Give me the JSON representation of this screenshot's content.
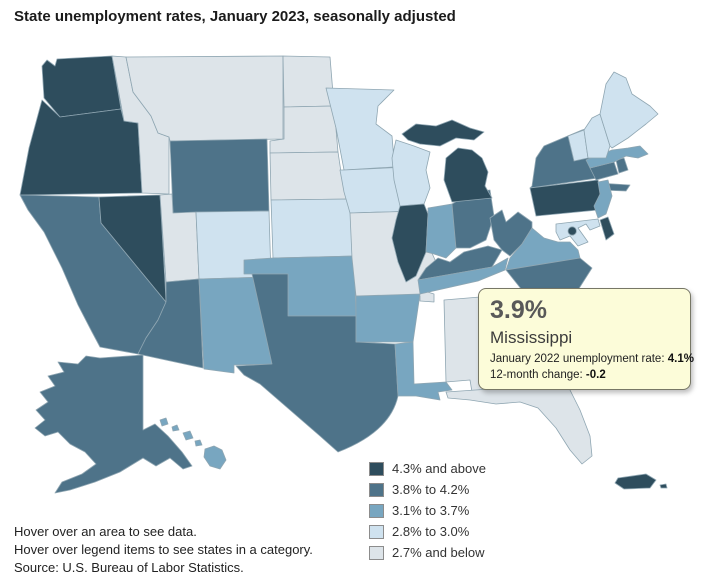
{
  "title": "State unemployment rates, January 2023, seasonally adjusted",
  "tooltip": {
    "rate": "3.9%",
    "state": "Mississippi",
    "row1_label": "January 2022 unemployment rate:",
    "row1_value": "4.1%",
    "row2_label": "12-month change:",
    "row2_value": "-0.2"
  },
  "footer": {
    "lines": [
      "Hover over an area to see data.",
      "Hover over legend items to see states in a category.",
      "Source: U.S. Bureau of Labor Statistics."
    ]
  },
  "chart_data": {
    "type": "heatmap",
    "subtype": "us-choropleth-map",
    "title": "State unemployment rates, January 2023, seasonally adjusted",
    "legend_position": "bottom-center",
    "categories": [
      "4.3% and above",
      "3.8% to 4.2%",
      "3.1% to 3.7%",
      "2.8% to 3.0%",
      "2.7% and below"
    ],
    "category_colors": [
      "#2e4d5d",
      "#4e7389",
      "#78a6c0",
      "#cfe2ef",
      "#dde4e9"
    ],
    "highlight_color": "#f5f22b",
    "border_color": "#8fa6b2",
    "highlighted_region": {
      "name": "Mississippi",
      "rate_jan_2023": "3.9%",
      "rate_jan_2022": "4.1%",
      "twelve_month_change": "-0.2"
    },
    "source": "U.S. Bureau of Labor Statistics",
    "regions": [
      {
        "id": "WA",
        "name": "Washington",
        "category": 0
      },
      {
        "id": "OR",
        "name": "Oregon",
        "category": 0
      },
      {
        "id": "CA",
        "name": "California",
        "category": 1
      },
      {
        "id": "NV",
        "name": "Nevada",
        "category": 0
      },
      {
        "id": "ID",
        "name": "Idaho",
        "category": 4
      },
      {
        "id": "MT",
        "name": "Montana",
        "category": 4
      },
      {
        "id": "WY",
        "name": "Wyoming",
        "category": 1
      },
      {
        "id": "UT",
        "name": "Utah",
        "category": 4
      },
      {
        "id": "CO",
        "name": "Colorado",
        "category": 3
      },
      {
        "id": "AZ",
        "name": "Arizona",
        "category": 1
      },
      {
        "id": "NM",
        "name": "New Mexico",
        "category": 2
      },
      {
        "id": "ND",
        "name": "North Dakota",
        "category": 4
      },
      {
        "id": "SD",
        "name": "South Dakota",
        "category": 4
      },
      {
        "id": "NE",
        "name": "Nebraska",
        "category": 4
      },
      {
        "id": "KS",
        "name": "Kansas",
        "category": 3
      },
      {
        "id": "OK",
        "name": "Oklahoma",
        "category": 2
      },
      {
        "id": "TX",
        "name": "Texas",
        "category": 1
      },
      {
        "id": "MN",
        "name": "Minnesota",
        "category": 3
      },
      {
        "id": "IA",
        "name": "Iowa",
        "category": 3
      },
      {
        "id": "MO",
        "name": "Missouri",
        "category": 4
      },
      {
        "id": "AR",
        "name": "Arkansas",
        "category": 2
      },
      {
        "id": "LA",
        "name": "Louisiana",
        "category": 2
      },
      {
        "id": "WI",
        "name": "Wisconsin",
        "category": 3
      },
      {
        "id": "IL",
        "name": "Illinois",
        "category": 0
      },
      {
        "id": "IN",
        "name": "Indiana",
        "category": 2
      },
      {
        "id": "OH",
        "name": "Ohio",
        "category": 1
      },
      {
        "id": "MI",
        "name": "Michigan",
        "category": 0
      },
      {
        "id": "KY",
        "name": "Kentucky",
        "category": 1
      },
      {
        "id": "TN",
        "name": "Tennessee",
        "category": 2
      },
      {
        "id": "WV",
        "name": "West Virginia",
        "category": 1
      },
      {
        "id": "VA",
        "name": "Virginia",
        "category": 2
      },
      {
        "id": "NC",
        "name": "North Carolina",
        "category": 1
      },
      {
        "id": "SC",
        "name": "South Carolina",
        "category": 2
      },
      {
        "id": "GA",
        "name": "Georgia",
        "category": 2
      },
      {
        "id": "AL",
        "name": "Alabama",
        "category": 4
      },
      {
        "id": "FL",
        "name": "Florida",
        "category": 4
      },
      {
        "id": "NY",
        "name": "New York",
        "category": 1
      },
      {
        "id": "PA",
        "name": "Pennsylvania",
        "category": 0
      },
      {
        "id": "NJ",
        "name": "New Jersey",
        "category": 2
      },
      {
        "id": "CT",
        "name": "Connecticut",
        "category": 1
      },
      {
        "id": "RI",
        "name": "Rhode Island",
        "category": 1
      },
      {
        "id": "MA",
        "name": "Massachusetts",
        "category": 2
      },
      {
        "id": "VT",
        "name": "Vermont",
        "category": 3
      },
      {
        "id": "NH",
        "name": "New Hampshire",
        "category": 3
      },
      {
        "id": "ME",
        "name": "Maine",
        "category": 3
      },
      {
        "id": "DE",
        "name": "Delaware",
        "category": 0
      },
      {
        "id": "MD",
        "name": "Maryland",
        "category": 3
      },
      {
        "id": "DC",
        "name": "District of Columbia",
        "category": 0
      },
      {
        "id": "AK",
        "name": "Alaska",
        "category": 1
      },
      {
        "id": "HI",
        "name": "Hawaii",
        "category": 2
      },
      {
        "id": "PR",
        "name": "Puerto Rico",
        "category": 0
      },
      {
        "id": "MS",
        "name": "Mississippi",
        "category": 1,
        "highlighted": true
      }
    ]
  }
}
